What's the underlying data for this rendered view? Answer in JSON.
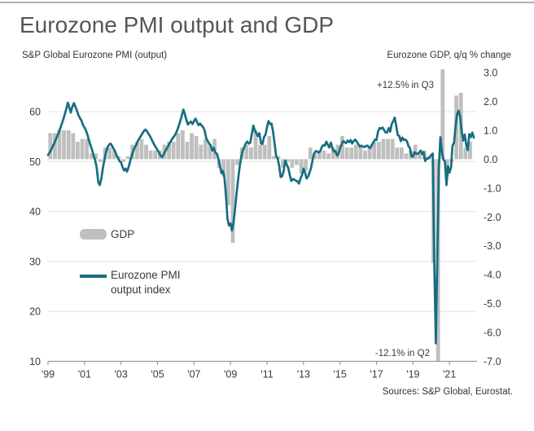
{
  "header": {
    "title": "Eurozone PMI output and GDP"
  },
  "footer": {
    "source": "Sources: S&P Global, Eurostat."
  },
  "colors": {
    "line": "#166e80",
    "bar": "#bfbfbf",
    "axis": "#999999",
    "grid": "#e4e4e4",
    "text": "#3a3a3a",
    "title": "#55565a"
  },
  "chart_data": {
    "type": "combo",
    "title": "Eurozone PMI output and GDP",
    "x_axis": {
      "tick_years": [
        1999,
        2001,
        2003,
        2005,
        2007,
        2009,
        2011,
        2013,
        2015,
        2017,
        2019,
        2021
      ],
      "tick_labels": [
        "'99",
        "'01",
        "'03",
        "'05",
        "'07",
        "'09",
        "'11",
        "'13",
        "'15",
        "'17",
        "'19",
        "'21"
      ],
      "range": [
        1999.0,
        2022.5
      ]
    },
    "y_left": {
      "label": "S&P Global Eurozone PMI (output)",
      "ticks": [
        60,
        50,
        40,
        30,
        20,
        10
      ],
      "range": [
        10,
        60
      ],
      "grid": true
    },
    "y_right": {
      "label": "Eurozone GDP, q/q % change",
      "ticks": [
        3.0,
        2.0,
        1.0,
        0.0,
        -1.0,
        -2.0,
        -3.0,
        -4.0,
        -5.0,
        -6.0,
        -7.0
      ],
      "range": [
        -7.0,
        3.0
      ],
      "grid": false
    },
    "annotations": [
      {
        "text": "+12.5% in Q3",
        "x": 533,
        "y": 108,
        "anchor": "end"
      },
      {
        "text": "-12.1% in Q2",
        "x": 528,
        "y": 437,
        "anchor": "end"
      }
    ],
    "series": [
      {
        "name": "GDP",
        "type": "bar",
        "axis": "right",
        "unit": "q/q % change",
        "frequency": "quarterly",
        "start": "1999-Q1",
        "values": [
          0.9,
          0.9,
          1.0,
          1.0,
          1.0,
          0.9,
          0.6,
          0.7,
          0.7,
          0.2,
          0.2,
          -0.1,
          0.4,
          0.4,
          0.3,
          0.1,
          -0.1,
          0.1,
          0.5,
          0.6,
          0.7,
          0.5,
          0.3,
          0.3,
          0.3,
          0.5,
          0.6,
          0.6,
          0.9,
          1.0,
          0.6,
          0.9,
          0.8,
          0.5,
          0.7,
          0.5,
          0.7,
          -0.3,
          -0.6,
          -1.6,
          -2.9,
          -0.2,
          0.4,
          0.5,
          0.4,
          1.0,
          0.5,
          0.5,
          0.8,
          0.1,
          0.1,
          -0.3,
          -0.1,
          -0.3,
          -0.2,
          -0.5,
          -0.4,
          0.4,
          0.2,
          0.3,
          0.3,
          0.2,
          0.4,
          0.5,
          0.8,
          0.4,
          0.4,
          0.5,
          0.5,
          0.3,
          0.4,
          0.6,
          0.6,
          0.7,
          0.7,
          0.7,
          0.4,
          0.4,
          0.2,
          0.3,
          0.5,
          0.2,
          0.3,
          0.1,
          -3.6,
          -12.1,
          12.5,
          -0.6,
          -0.1,
          2.2,
          2.3,
          0.4,
          0.6
        ]
      },
      {
        "name": "Eurozone PMI output index",
        "type": "line",
        "axis": "left",
        "frequency": "monthly",
        "start": "1999-01",
        "values": [
          51.3,
          51.8,
          52.3,
          53.0,
          53.6,
          54.3,
          55.0,
          55.8,
          56.6,
          57.5,
          58.4,
          59.5,
          60.5,
          61.8,
          60.8,
          59.8,
          61.0,
          61.7,
          61.0,
          60.2,
          59.3,
          58.7,
          58.2,
          57.3,
          56.8,
          56.2,
          55.3,
          54.2,
          53.2,
          52.3,
          51.2,
          50.3,
          48.8,
          45.9,
          45.3,
          46.5,
          48.6,
          50.2,
          51.7,
          52.8,
          53.3,
          53.6,
          53.2,
          52.6,
          52.1,
          51.3,
          50.7,
          50.1,
          49.8,
          48.9,
          48.2,
          48.6,
          48.0,
          48.9,
          50.1,
          51.1,
          52.1,
          52.8,
          53.4,
          54.1,
          54.6,
          55.1,
          55.6,
          56.1,
          56.4,
          56.1,
          55.6,
          55.1,
          54.5,
          53.9,
          53.3,
          52.8,
          52.3,
          51.8,
          51.2,
          50.9,
          51.4,
          52.0,
          52.6,
          53.1,
          53.7,
          54.2,
          54.7,
          55.1,
          55.6,
          56.3,
          57.2,
          58.1,
          59.3,
          60.4,
          59.5,
          58.3,
          57.4,
          57.8,
          58.0,
          57.5,
          58.1,
          58.6,
          57.9,
          57.3,
          57.6,
          57.2,
          56.9,
          56.2,
          54.7,
          54.1,
          53.6,
          53.2,
          52.2,
          52.7,
          51.8,
          51.6,
          50.6,
          49.2,
          47.7,
          48.1,
          46.8,
          43.2,
          38.6,
          37.2,
          37.6,
          36.2,
          37.8,
          40.6,
          43.7,
          46.4,
          48.9,
          50.9,
          52.1,
          52.9,
          53.6,
          54.0,
          53.6,
          53.8,
          55.5,
          57.2,
          56.2,
          55.7,
          55.1,
          55.7,
          53.7,
          53.5,
          54.9,
          55.4,
          56.9,
          58.1,
          57.5,
          57.6,
          55.9,
          53.5,
          51.1,
          50.6,
          49.1,
          46.9,
          47.1,
          48.2,
          50.2,
          49.4,
          48.7,
          47.3,
          46.1,
          46.5,
          46.4,
          46.2,
          46.0,
          45.6,
          46.6,
          47.3,
          48.6,
          47.8,
          46.6,
          47.0,
          47.8,
          48.8,
          50.4,
          51.6,
          52.1,
          52.0,
          51.8,
          52.1,
          52.9,
          53.3,
          53.2,
          54.0,
          53.4,
          52.8,
          53.8,
          52.7,
          52.0,
          52.1,
          51.2,
          51.5,
          52.7,
          53.4,
          54.1,
          53.9,
          53.7,
          54.2,
          53.9,
          54.3,
          53.6,
          54.1,
          54.4,
          54.0,
          53.5,
          53.0,
          53.2,
          53.0,
          52.9,
          53.1,
          53.2,
          52.9,
          52.7,
          53.4,
          53.9,
          54.4,
          54.3,
          56.0,
          56.7,
          56.6,
          56.8,
          56.3,
          55.8,
          55.8,
          56.7,
          56.0,
          57.5,
          58.1,
          58.8,
          57.1,
          55.3,
          55.1,
          54.1,
          54.8,
          54.3,
          54.4,
          54.1,
          53.1,
          52.7,
          51.1,
          51.0,
          51.9,
          51.6,
          51.5,
          51.8,
          52.2,
          51.5,
          51.9,
          50.1,
          50.6,
          50.6,
          50.9,
          51.3,
          51.6,
          29.7,
          13.6,
          31.9,
          48.5,
          54.9,
          51.9,
          50.4,
          50.0,
          45.3,
          49.1,
          47.8,
          48.8,
          53.2,
          53.8,
          57.1,
          59.5,
          60.2,
          59.0,
          56.2,
          54.2,
          55.4,
          53.3,
          52.3,
          55.5,
          54.9,
          55.8,
          54.8
        ]
      }
    ]
  }
}
